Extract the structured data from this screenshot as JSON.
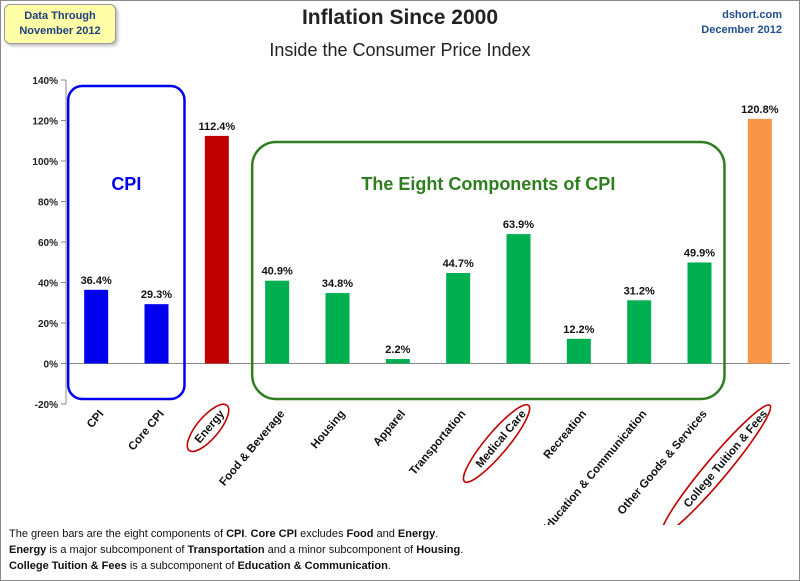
{
  "header": {
    "title": "Inflation Since 2000",
    "subtitle": "Inside the Consumer Price Index",
    "data_note": [
      "Data Through",
      "November 2012"
    ],
    "source": [
      "dshort.com",
      "December 2012"
    ]
  },
  "annotations": {
    "cpi_group_label": "CPI",
    "components_group_label": "The Eight Components of CPI"
  },
  "footnote": {
    "line1": [
      {
        "text": "The green bars are the eight components of ",
        "bold": false
      },
      {
        "text": "CPI",
        "bold": true
      },
      {
        "text": ". ",
        "bold": false
      },
      {
        "text": "Core CPI",
        "bold": true
      },
      {
        "text": " excludes ",
        "bold": false
      },
      {
        "text": "Food",
        "bold": true
      },
      {
        "text": " and ",
        "bold": false
      },
      {
        "text": "Energy",
        "bold": true
      },
      {
        "text": ".",
        "bold": false
      }
    ],
    "line2": [
      {
        "text": "Energy",
        "bold": true
      },
      {
        "text": " is a major subcomponent of ",
        "bold": false
      },
      {
        "text": "Transportation",
        "bold": true
      },
      {
        "text": " and a minor subcomponent of ",
        "bold": false
      },
      {
        "text": "Housing",
        "bold": true
      },
      {
        "text": ".",
        "bold": false
      }
    ],
    "line3": [
      {
        "text": "College Tuition & Fees",
        "bold": true
      },
      {
        "text": " is a subcomponent of ",
        "bold": false
      },
      {
        "text": "Education & Communication",
        "bold": true
      },
      {
        "text": ".",
        "bold": false
      }
    ]
  },
  "colors": {
    "cpi": "#0000ee",
    "energy": "#c00000",
    "component": "#00b050",
    "tuition": "#f79646",
    "cpi_box": "#0000ee",
    "component_box": "#2e7d1e",
    "highlight_ellipse": "#c00000"
  },
  "chart_data": {
    "type": "bar",
    "title": "Inflation Since 2000",
    "subtitle": "Inside the Consumer Price Index",
    "ylim": [
      -20,
      140
    ],
    "yticks": [
      -20,
      0,
      20,
      40,
      60,
      80,
      100,
      120,
      140
    ],
    "ytick_format": "percent",
    "grid": false,
    "categories": [
      "CPI",
      "Core CPI",
      "Energy",
      "Food & Beverage",
      "Housing",
      "Apparel",
      "Transportation",
      "Medical Care",
      "Recreation",
      "Education & Communication",
      "Other Goods & Services",
      "College Tuition & Fees"
    ],
    "values": [
      36.4,
      29.3,
      112.4,
      40.9,
      34.8,
      2.2,
      44.7,
      63.9,
      12.2,
      31.2,
      49.9,
      120.8
    ],
    "value_labels": [
      "36.4%",
      "29.3%",
      "112.4%",
      "40.9%",
      "34.8%",
      "2.2%",
      "44.7%",
      "63.9%",
      "12.2%",
      "31.2%",
      "49.9%",
      "120.8%"
    ],
    "bar_groups": [
      "cpi",
      "cpi",
      "energy",
      "component",
      "component",
      "component",
      "component",
      "component",
      "component",
      "component",
      "component",
      "tuition"
    ],
    "highlighted_categories": [
      "Energy",
      "Medical Care",
      "College Tuition & Fees"
    ]
  }
}
